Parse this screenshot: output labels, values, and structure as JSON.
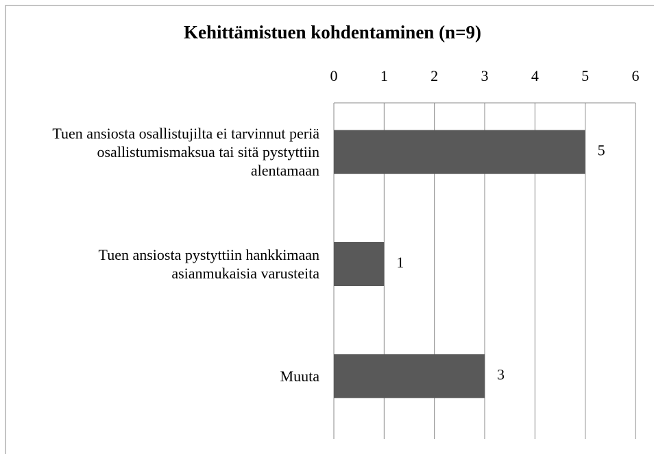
{
  "chart_data": {
    "type": "bar",
    "orientation": "horizontal",
    "title": "Kehittämistuen kohdentaminen (n=9)",
    "categories": [
      "Tuen ansiosta osallistujilta ei tarvinnut periä osallistumismaksua tai sitä pystyttiin alentamaan",
      "Tuen ansiosta pystyttiin hankkimaan asianmukaisia varusteita",
      "Muuta"
    ],
    "values": [
      5,
      1,
      3
    ],
    "color": "#595959",
    "xlim": [
      0,
      6
    ],
    "xticks": [
      0,
      1,
      2,
      3,
      4,
      5,
      6
    ],
    "grid": true
  }
}
